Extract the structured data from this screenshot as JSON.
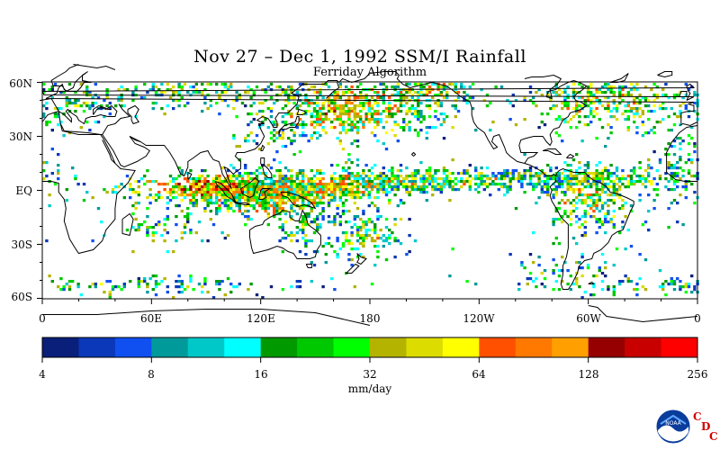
{
  "title": "Nov 27 – Dec 1, 1992 SSM/I Rainfall",
  "subtitle": "Ferriday Algorithm",
  "lat_labels": [
    "60N",
    "30N",
    "EQ",
    "30S",
    "60S"
  ],
  "lon_labels": [
    "0",
    "60E",
    "120E",
    "180",
    "120W",
    "60W",
    "0"
  ],
  "colorbar": {
    "tick_labels": [
      "4",
      "8",
      "16",
      "32",
      "64",
      "128",
      "256"
    ],
    "units": "mm/day",
    "colors": [
      "#0a1f7a",
      "#0a38b8",
      "#1050f0",
      "#009a9a",
      "#00c8c8",
      "#00ffff",
      "#009a00",
      "#00c800",
      "#00ff00",
      "#b4b400",
      "#dcdc00",
      "#ffff00",
      "#ff5000",
      "#ff7800",
      "#ffa000",
      "#960000",
      "#c80000",
      "#ff0000"
    ]
  },
  "logo": {
    "org": "NOAA",
    "letters": [
      "C",
      "D",
      "C"
    ],
    "icon": "noaa-logo-icon"
  }
}
